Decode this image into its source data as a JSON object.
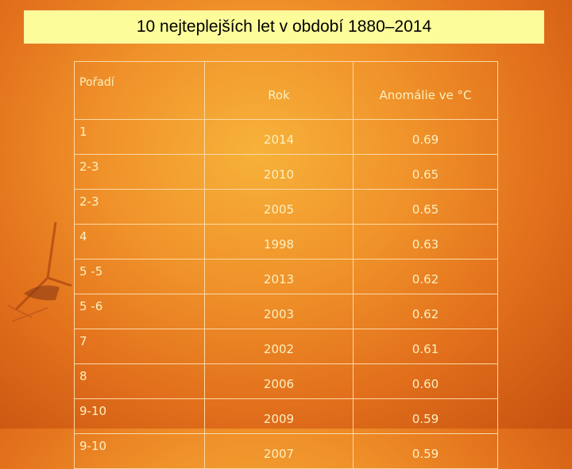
{
  "title": "10 nejteplejších let v období 1880–2014",
  "table": {
    "headers": [
      "Pořadí",
      "Rok",
      "Anomálie ve  °C"
    ],
    "rows": [
      [
        "1",
        "2014",
        "0.69"
      ],
      [
        "2-3",
        "2010",
        "0.65"
      ],
      [
        "2-3",
        "2005",
        "0.65"
      ],
      [
        "4",
        "1998",
        "0.63"
      ],
      [
        "5 -5",
        "2013",
        "0.62"
      ],
      [
        "5 -6",
        "2003",
        "0.62"
      ],
      [
        "7",
        "2002",
        "0.61"
      ],
      [
        "8",
        "2006",
        "0.60"
      ],
      [
        "9-10",
        "2009",
        "0.59"
      ],
      [
        "9-10",
        "2007",
        "0.59"
      ]
    ]
  }
}
